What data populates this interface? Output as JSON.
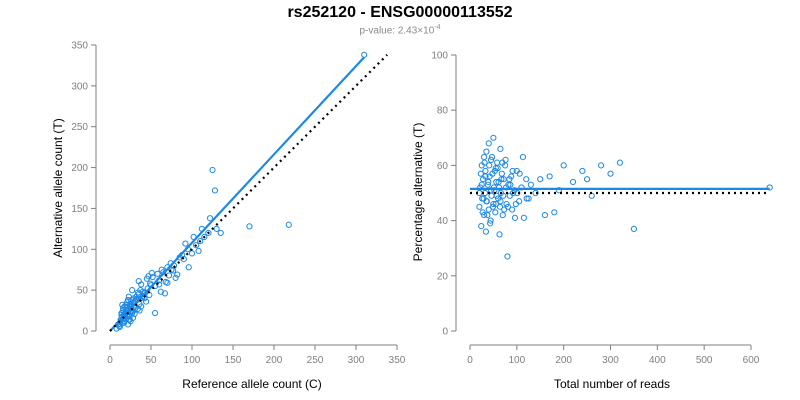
{
  "figure": {
    "title": "rs252120 - ENSG00000113552",
    "pvalue_label": "p-value: 2.43×10",
    "pvalue_exponent": "-4"
  },
  "colors": {
    "points": "#1e88e5",
    "fit_line": "#1e88e5",
    "reference_line": "#000000",
    "axis": "#7f7f7f"
  },
  "chart_data": [
    {
      "type": "scatter",
      "xlabel": "Reference allele count (C)",
      "ylabel": "Alternative allele count (T)",
      "xlim": [
        0,
        350
      ],
      "ylim": [
        0,
        350
      ],
      "xticks": [
        0,
        50,
        100,
        150,
        200,
        250,
        300,
        350
      ],
      "yticks": [
        0,
        50,
        100,
        150,
        200,
        250,
        300,
        350
      ],
      "fit_line": [
        [
          0,
          0
        ],
        [
          310,
          335
        ]
      ],
      "reference_line": [
        [
          0,
          0
        ],
        [
          338,
          338
        ]
      ],
      "x": [
        8,
        10,
        12,
        13,
        14,
        15,
        16,
        17,
        18,
        18,
        19,
        20,
        20,
        21,
        22,
        22,
        23,
        24,
        25,
        25,
        26,
        27,
        28,
        29,
        30,
        11,
        13,
        15,
        17,
        19,
        21,
        23,
        25,
        27,
        29,
        31,
        12,
        14,
        16,
        18,
        20,
        22,
        24,
        26,
        28,
        30,
        32,
        34,
        35,
        36,
        38,
        40,
        42,
        44,
        46,
        48,
        50,
        33,
        37,
        41,
        45,
        49,
        52,
        55,
        58,
        60,
        62,
        65,
        68,
        70,
        72,
        75,
        78,
        80,
        85,
        90,
        95,
        100,
        105,
        110,
        115,
        120,
        122,
        125,
        128,
        130,
        135,
        170,
        218,
        310,
        16,
        18,
        20,
        22,
        24,
        15,
        17,
        19,
        21,
        23,
        26,
        28,
        30,
        32,
        34,
        36,
        38,
        40,
        27,
        31,
        35,
        39,
        43,
        47,
        51,
        55,
        60,
        63,
        67,
        70,
        74,
        77,
        82,
        88,
        92,
        96,
        102,
        108,
        112
      ],
      "y": [
        3,
        8,
        5,
        14,
        20,
        10,
        25,
        12,
        30,
        18,
        22,
        28,
        15,
        35,
        8,
        24,
        19,
        33,
        27,
        12,
        38,
        22,
        16,
        40,
        30,
        6,
        12,
        18,
        10,
        26,
        20,
        14,
        32,
        25,
        34,
        28,
        9,
        22,
        15,
        20,
        32,
        26,
        18,
        30,
        24,
        36,
        42,
        27,
        45,
        33,
        30,
        48,
        40,
        36,
        52,
        44,
        56,
        38,
        50,
        46,
        64,
        58,
        66,
        55,
        70,
        62,
        48,
        72,
        60,
        78,
        68,
        75,
        80,
        65,
        90,
        88,
        100,
        95,
        105,
        110,
        115,
        120,
        138,
        197,
        172,
        125,
        120,
        128,
        130,
        338,
        28,
        16,
        22,
        38,
        14,
        32,
        20,
        26,
        18,
        42,
        29,
        34,
        21,
        39,
        47,
        25,
        57,
        43,
        50,
        37,
        61,
        41,
        47,
        67,
        71,
        22,
        57,
        75,
        46,
        59,
        83,
        74,
        69,
        93,
        107,
        78,
        115,
        98,
        125
      ]
    },
    {
      "type": "scatter",
      "xlabel": "Total number of reads",
      "ylabel": "Percentage alternative (T)",
      "xlim": [
        0,
        600
      ],
      "ylim": [
        0,
        100
      ],
      "xticks": [
        0,
        100,
        200,
        300,
        400,
        500,
        600
      ],
      "yticks": [
        0,
        20,
        40,
        60,
        80,
        100
      ],
      "fit_line": [
        [
          0,
          51.5
        ],
        [
          640,
          51.5
        ]
      ],
      "reference_line": [
        [
          0,
          50
        ],
        [
          640,
          50
        ]
      ],
      "x": [
        20,
        22,
        24,
        25,
        26,
        28,
        30,
        30,
        32,
        33,
        34,
        35,
        36,
        38,
        40,
        40,
        42,
        44,
        45,
        46,
        48,
        50,
        50,
        52,
        54,
        55,
        56,
        58,
        60,
        62,
        64,
        65,
        66,
        68,
        70,
        72,
        75,
        78,
        80,
        82,
        85,
        88,
        90,
        95,
        100,
        105,
        110,
        115,
        120,
        125,
        20,
        23,
        27,
        31,
        35,
        39,
        43,
        47,
        51,
        55,
        59,
        63,
        67,
        71,
        76,
        81,
        86,
        91,
        96,
        101,
        25,
        29,
        33,
        37,
        41,
        45,
        49,
        53,
        57,
        61,
        65,
        69,
        73,
        77,
        84,
        92,
        98,
        106,
        113,
        121,
        130,
        140,
        150,
        160,
        170,
        180,
        190,
        200,
        220,
        240,
        250,
        260,
        280,
        300,
        320,
        350,
        640
      ],
      "y": [
        45,
        52,
        38,
        60,
        48,
        55,
        42,
        63,
        50,
        58,
        36,
        65,
        47,
        53,
        44,
        68,
        56,
        40,
        62,
        49,
        57,
        46,
        70,
        51,
        43,
        59,
        54,
        61,
        48,
        52,
        45,
        66,
        50,
        57,
        42,
        55,
        60,
        46,
        27,
        53,
        49,
        56,
        44,
        51,
        58,
        47,
        52,
        41,
        55,
        48,
        50,
        57,
        43,
        61,
        47,
        54,
        39,
        63,
        52,
        46,
        59,
        35,
        55,
        49,
        62,
        45,
        53,
        58,
        41,
        50,
        53,
        48,
        56,
        42,
        60,
        51,
        45,
        58,
        49,
        54,
        47,
        61,
        44,
        52,
        55,
        50,
        46,
        57,
        63,
        48,
        53,
        50,
        55,
        42,
        56,
        43,
        51,
        60,
        54,
        58,
        55,
        49,
        60,
        57,
        61,
        37,
        52
      ]
    }
  ]
}
